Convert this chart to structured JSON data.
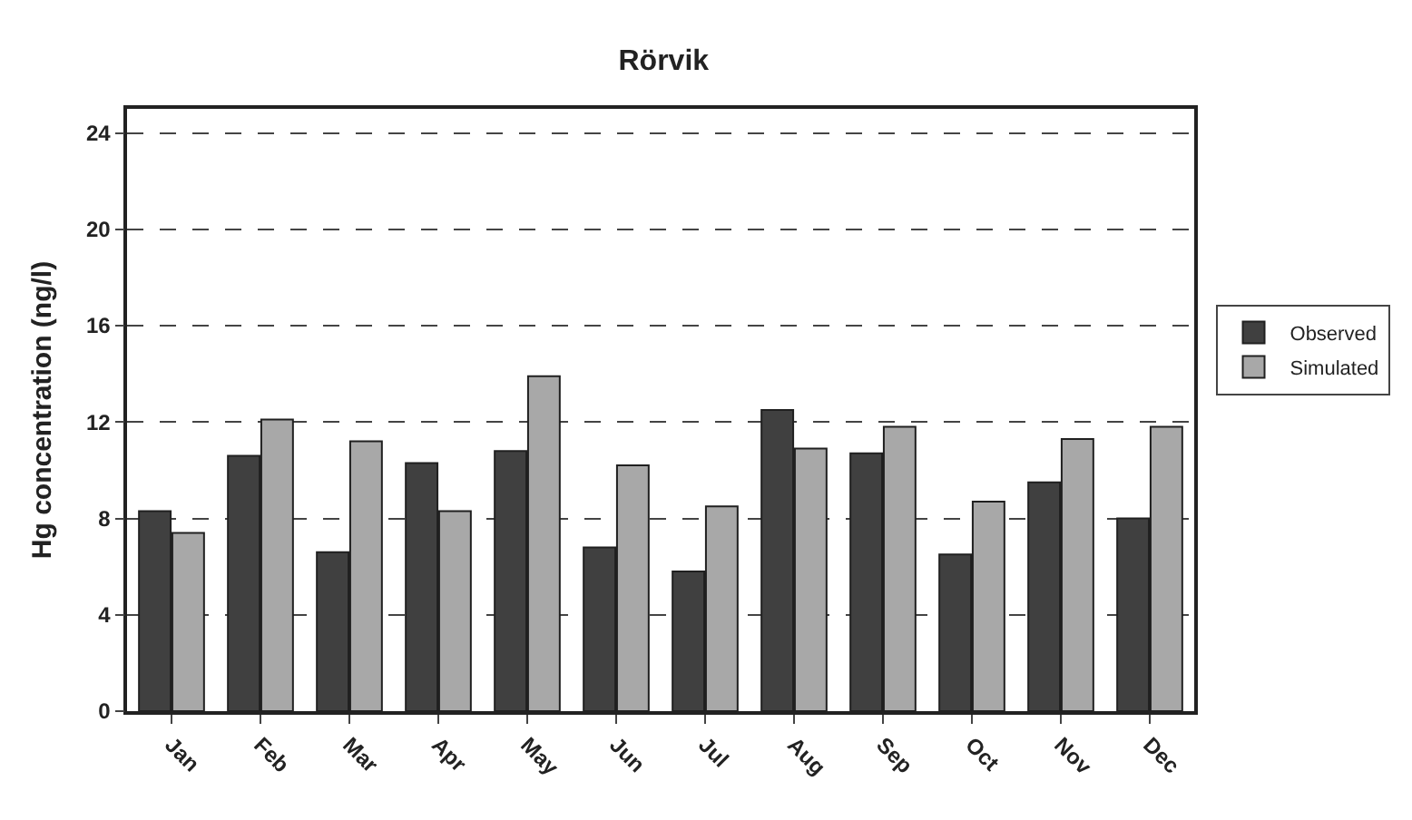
{
  "chart_data": {
    "type": "bar",
    "title": "Rörvik",
    "ylabel": "Hg concentration (ng/l)",
    "categories": [
      "Jan",
      "Feb",
      "Mar",
      "Apr",
      "May",
      "Jun",
      "Jul",
      "Aug",
      "Sep",
      "Oct",
      "Nov",
      "Dec"
    ],
    "series": [
      {
        "name": "Observed",
        "color": "#404040",
        "values": [
          8.3,
          10.6,
          6.6,
          10.3,
          10.8,
          6.8,
          5.8,
          12.5,
          10.7,
          6.5,
          9.5,
          8.0
        ]
      },
      {
        "name": "Simulated",
        "color": "#a8a8a8",
        "values": [
          7.4,
          12.1,
          11.2,
          8.3,
          13.9,
          10.2,
          8.5,
          10.9,
          11.8,
          8.7,
          11.3,
          11.8
        ]
      }
    ],
    "ylim": [
      0,
      25
    ],
    "yticks": [
      0,
      4,
      8,
      12,
      16,
      20,
      24
    ],
    "grid": "y",
    "legend": "right"
  }
}
